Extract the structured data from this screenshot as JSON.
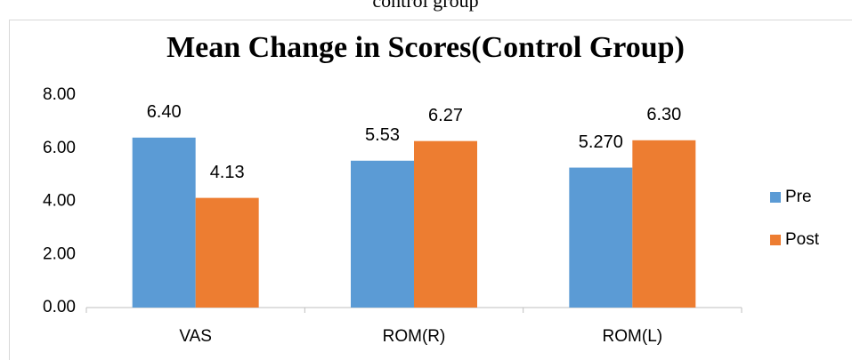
{
  "caption": "control group",
  "chart_data": {
    "type": "bar",
    "title": "Mean Change in Scores(Control Group)",
    "categories": [
      "VAS",
      "ROM(R)",
      "ROM(L)"
    ],
    "series": [
      {
        "name": "Pre",
        "color": "#5b9bd5",
        "values": [
          6.4,
          5.53,
          5.27
        ],
        "value_labels": [
          "6.40",
          "5.53",
          "5.270"
        ]
      },
      {
        "name": "Post",
        "color": "#ed7d31",
        "values": [
          4.13,
          6.27,
          6.3
        ],
        "value_labels": [
          "4.13",
          "6.27",
          "6.30"
        ]
      }
    ],
    "ylim": [
      0,
      8
    ],
    "yticks": [
      {
        "value": 0,
        "label": "0.00"
      },
      {
        "value": 2,
        "label": "2.00"
      },
      {
        "value": 4,
        "label": "4.00"
      },
      {
        "value": 6,
        "label": "6.00"
      },
      {
        "value": 8,
        "label": "8.00"
      }
    ],
    "grid": false,
    "legend": "right"
  }
}
